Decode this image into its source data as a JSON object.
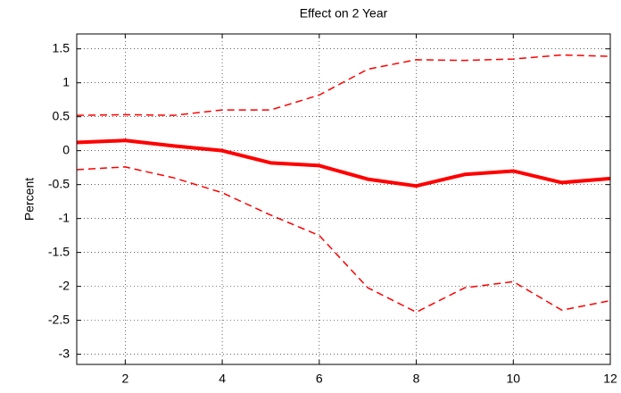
{
  "chart_data": {
    "type": "line",
    "title": "Effect on 2 Year",
    "y_label": "Percent",
    "x": [
      1,
      2,
      3,
      4,
      5,
      6,
      7,
      8,
      9,
      10,
      11,
      12
    ],
    "series": [
      {
        "color": "#ff0000",
        "line_style": "solid",
        "line_width": 4,
        "values": [
          0.12,
          0.15,
          0.07,
          0.0,
          -0.18,
          -0.22,
          -0.42,
          -0.52,
          -0.35,
          -0.3,
          -0.47,
          -0.41
        ]
      },
      {
        "color": "#ff0000",
        "line_style": "dashed",
        "line_width": 1.5,
        "values": [
          0.52,
          0.53,
          0.52,
          0.6,
          0.6,
          0.82,
          1.2,
          1.34,
          1.33,
          1.35,
          1.41,
          1.39
        ]
      },
      {
        "color": "#ff0000",
        "line_style": "dashed",
        "line_width": 1.5,
        "values": [
          -0.28,
          -0.24,
          -0.4,
          -0.62,
          -0.95,
          -1.25,
          -2.02,
          -2.38,
          -2.02,
          -1.93,
          -2.35,
          -2.21
        ]
      }
    ],
    "xlim": [
      1,
      12
    ],
    "xticks": [
      2,
      4,
      6,
      8,
      10,
      12
    ],
    "ylim": [
      -3.15,
      1.72
    ],
    "yticks": [
      -3,
      -2.5,
      -2,
      -1.5,
      -1,
      -0.5,
      0,
      0.5,
      1,
      1.5
    ],
    "grid": true
  }
}
